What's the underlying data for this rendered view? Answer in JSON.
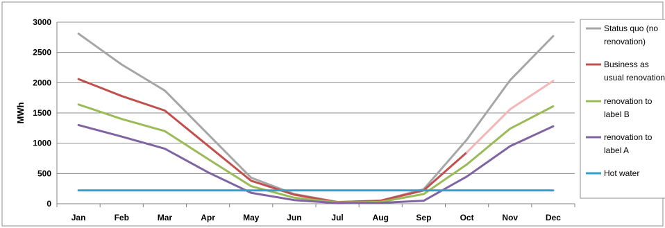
{
  "chart_data": {
    "type": "line",
    "title": "",
    "xlabel": "",
    "ylabel": "MWh",
    "ylim": [
      0,
      3000
    ],
    "yticks": [
      0,
      500,
      1000,
      1500,
      2000,
      2500,
      3000
    ],
    "grid": true,
    "legend_position": "right",
    "categories": [
      "Jan",
      "Feb",
      "Mar",
      "Apr",
      "May",
      "Jun",
      "Jul",
      "Aug",
      "Sep",
      "Oct",
      "Nov",
      "Dec"
    ],
    "series": [
      {
        "name": "Status quo (no renovation)",
        "color": "#a6a6a6",
        "values": [
          2810,
          2300,
          1870,
          1150,
          430,
          160,
          30,
          50,
          240,
          1060,
          2040,
          2770
        ]
      },
      {
        "name": "Business as usual renovation",
        "color": "#c0504d",
        "tail_color": "#f2b7b6",
        "values": [
          2060,
          1780,
          1540,
          960,
          380,
          150,
          25,
          50,
          220,
          850,
          1560,
          2030
        ]
      },
      {
        "name": "renovation to label B",
        "color": "#9bbb59",
        "values": [
          1640,
          1400,
          1200,
          740,
          290,
          100,
          20,
          30,
          160,
          650,
          1240,
          1610
        ]
      },
      {
        "name": "renovation to label A",
        "color": "#8064a2",
        "values": [
          1300,
          1110,
          910,
          520,
          180,
          60,
          10,
          15,
          50,
          450,
          950,
          1280
        ]
      },
      {
        "name": "Hot water",
        "color": "#31a1c8",
        "values": [
          220,
          220,
          220,
          220,
          220,
          220,
          220,
          220,
          220,
          220,
          220,
          220
        ]
      }
    ],
    "legend": [
      {
        "line1": "Status quo (no",
        "line2": "renovation)"
      },
      {
        "line1": "Business as",
        "line2": "usual renovation"
      },
      {
        "line1": "renovation to",
        "line2": "label B"
      },
      {
        "line1": "renovation to",
        "line2": "label A"
      },
      {
        "line1": "Hot water",
        "line2": ""
      }
    ]
  }
}
